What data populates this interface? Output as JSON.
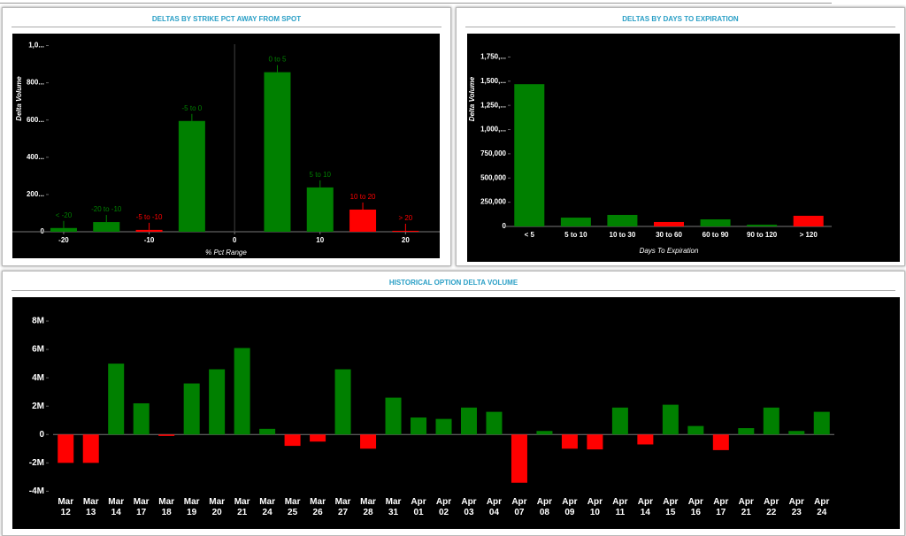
{
  "chart_data": [
    {
      "type": "bar",
      "title": "DELTAS BY STRIKE PCT AWAY FROM SPOT",
      "xlabel": "% Pct Range",
      "ylabel": "Delta Volume",
      "categories": [
        "< -20",
        "-20 to -10",
        "-5 to -10",
        "-5 to 0",
        "0 to 5",
        "5 to 10",
        "10 to 20",
        "> 20"
      ],
      "x": [
        -20,
        -15,
        -10,
        -5,
        5,
        10,
        15,
        20
      ],
      "values": [
        20,
        52,
        10,
        595,
        857,
        238,
        119,
        5
      ],
      "colors": [
        "#008000",
        "#008000",
        "#ff0000",
        "#008000",
        "#008000",
        "#008000",
        "#ff0000",
        "#ff0000"
      ],
      "xlim": [
        -26,
        24
      ],
      "xticks": [
        -20,
        -10,
        0,
        10,
        20
      ],
      "ylim": [
        0,
        1050
      ],
      "yticks": [
        0,
        {
          "value": 200,
          "label": "200..."
        },
        {
          "value": 400,
          "label": "400..."
        },
        {
          "value": 600,
          "label": "600..."
        },
        {
          "value": 800,
          "label": "800..."
        },
        {
          "value": 1000,
          "label": "1,0..."
        }
      ]
    },
    {
      "type": "bar",
      "title": "DELTAS BY DAYS TO EXPIRATION",
      "xlabel": "Days To Expiration",
      "ylabel": "Delta Volume",
      "categories": [
        "< 5",
        "5 to 10",
        "10 to 30",
        "30 to 60",
        "60 to 90",
        "90 to 120",
        "> 120"
      ],
      "values": [
        1469000,
        91000,
        119000,
        46000,
        73000,
        18000,
        110000
      ],
      "colors": [
        "#008000",
        "#008000",
        "#008000",
        "#ff0000",
        "#008000",
        "#008000",
        "#ff0000"
      ],
      "ylim": [
        0,
        1900000
      ],
      "yticks": [
        0,
        {
          "value": 250000,
          "label": "250,000"
        },
        {
          "value": 500000,
          "label": "500,000"
        },
        {
          "value": 750000,
          "label": "750,000"
        },
        {
          "value": 1000000,
          "label": "1,000,..."
        },
        {
          "value": 1250000,
          "label": "1,250,..."
        },
        {
          "value": 1500000,
          "label": "1,500,..."
        },
        {
          "value": 1750000,
          "label": "1,750,..."
        }
      ]
    },
    {
      "type": "bar",
      "title": "HISTORICAL OPTION DELTA VOLUME",
      "categories": [
        "Mar 12",
        "Mar 13",
        "Mar 14",
        "Mar 17",
        "Mar 18",
        "Mar 19",
        "Mar 20",
        "Mar 21",
        "Mar 24",
        "Mar 25",
        "Mar 26",
        "Mar 27",
        "Mar 28",
        "Mar 31",
        "Apr 01",
        "Apr 02",
        "Apr 03",
        "Apr 04",
        "Apr 07",
        "Apr 08",
        "Apr 09",
        "Apr 10",
        "Apr 11",
        "Apr 14",
        "Apr 15",
        "Apr 16",
        "Apr 17",
        "Apr 21",
        "Apr 22",
        "Apr 23",
        "Apr 24"
      ],
      "values": [
        -2000000,
        -2000000,
        5000000,
        2200000,
        -100000,
        3600000,
        4600000,
        6100000,
        400000,
        -800000,
        -500000,
        4600000,
        -1000000,
        2600000,
        1200000,
        1100000,
        1900000,
        1600000,
        -3400000,
        250000,
        -1000000,
        -1050000,
        1900000,
        -700000,
        2100000,
        600000,
        -1100000,
        450000,
        1900000,
        250000,
        1600000
      ],
      "color_positive": "#008000",
      "color_negative": "#ff0000",
      "ylim": [
        -4600000,
        8500000
      ],
      "yticks": [
        {
          "value": -4000000,
          "label": "-4M"
        },
        {
          "value": -2000000,
          "label": "-2M"
        },
        0,
        {
          "value": 2000000,
          "label": "2M"
        },
        {
          "value": 4000000,
          "label": "4M"
        },
        {
          "value": 6000000,
          "label": "6M"
        },
        {
          "value": 8000000,
          "label": "8M"
        }
      ]
    }
  ]
}
